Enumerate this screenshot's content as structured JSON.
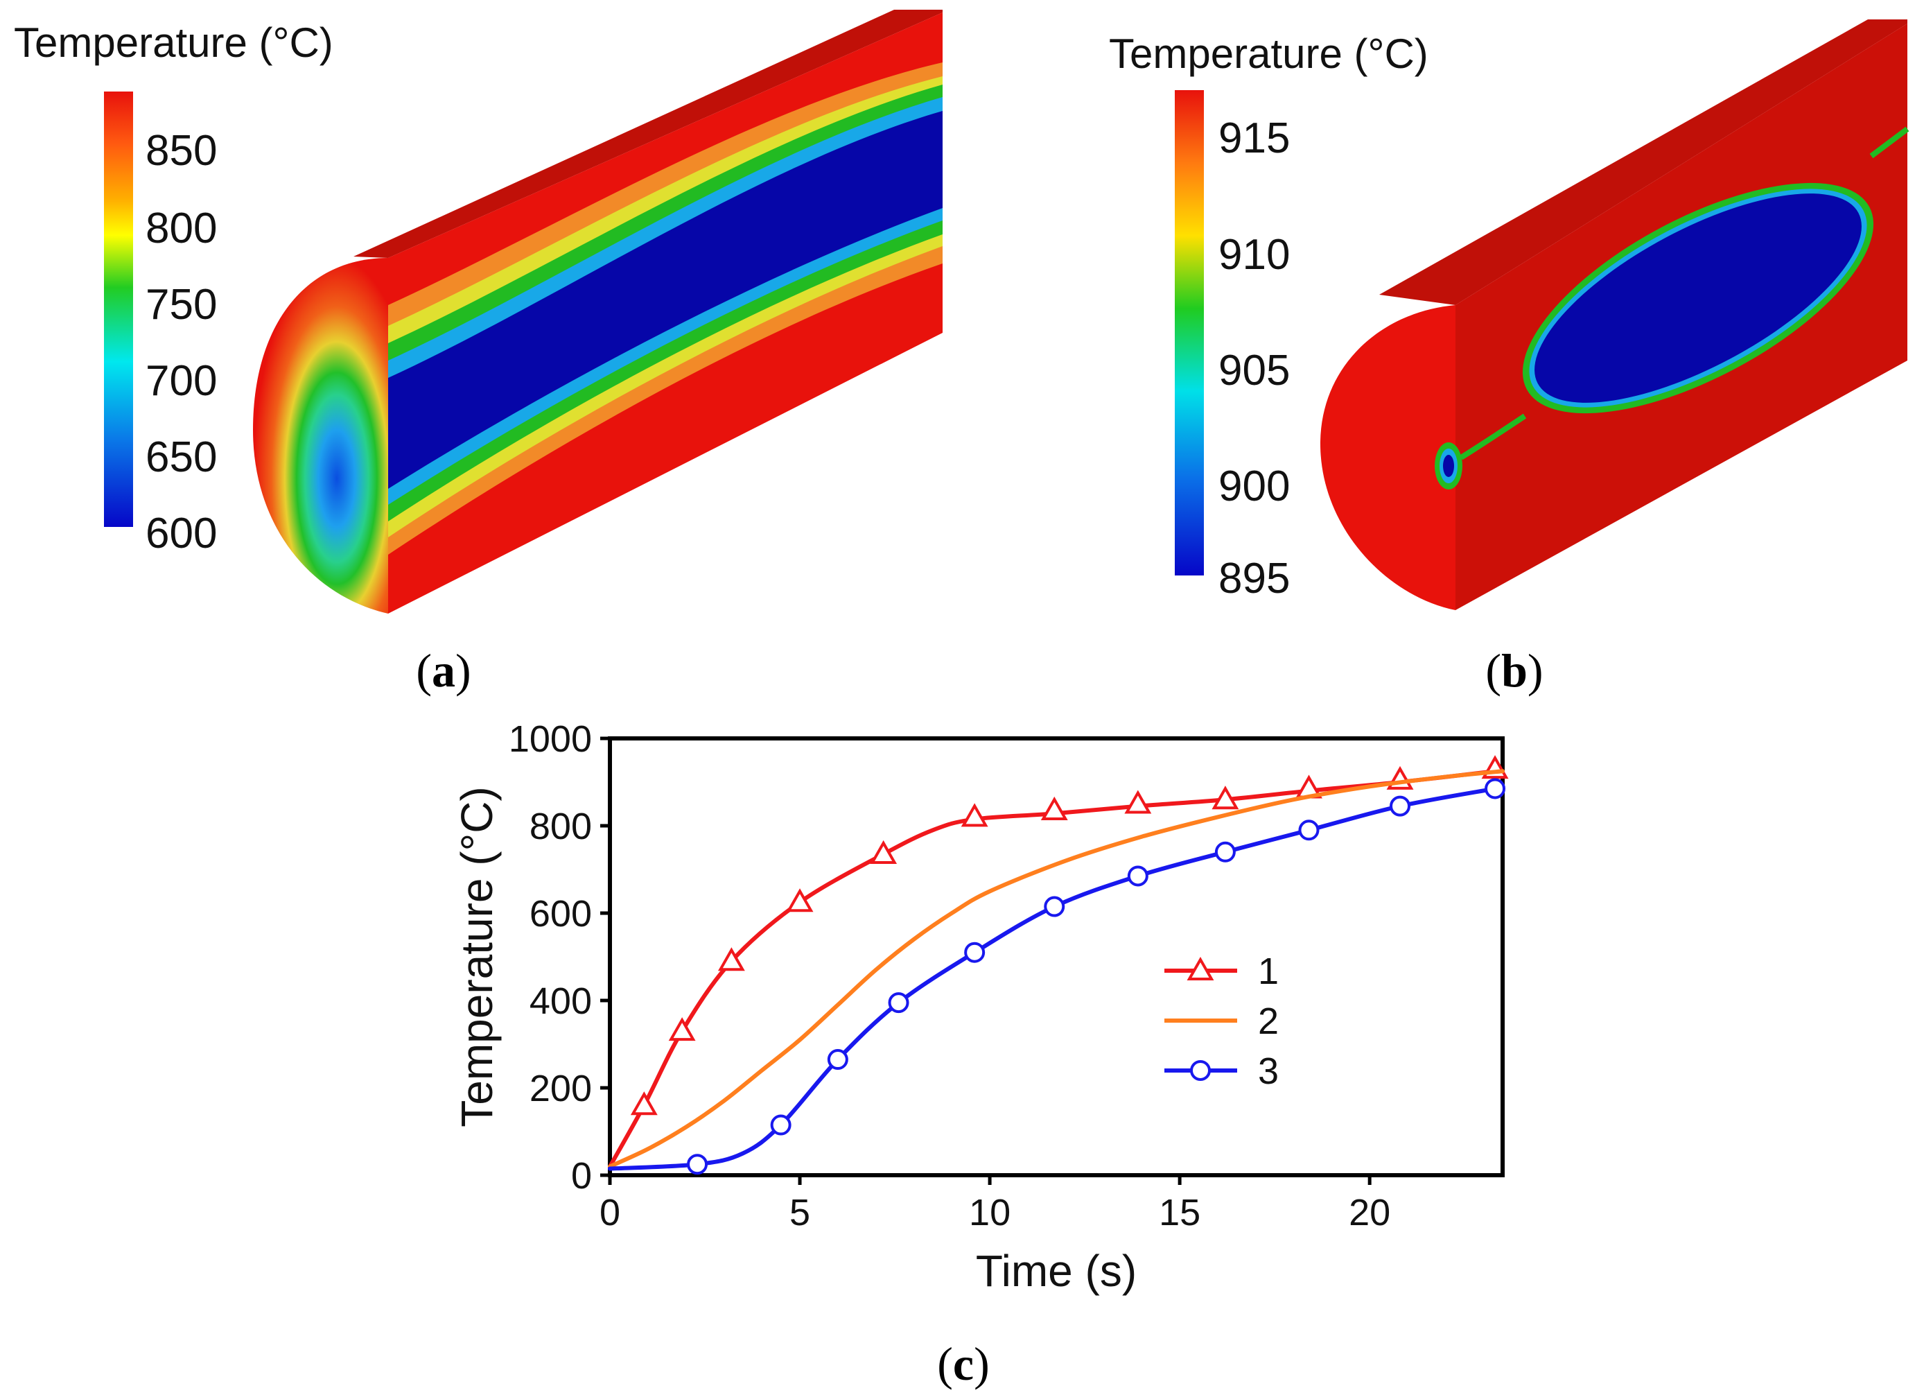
{
  "panels": {
    "a": {
      "label": "a",
      "colorbar": {
        "title": "Temperature (°C)",
        "ticks": [
          "850",
          "800",
          "750",
          "700",
          "650",
          "600"
        ]
      }
    },
    "b": {
      "label": "b",
      "colorbar": {
        "title": "Temperature (°C)",
        "ticks": [
          "915",
          "910",
          "905",
          "900",
          "895"
        ]
      }
    },
    "c": {
      "label": "c"
    }
  },
  "colors": {
    "series1": "#f0181c",
    "series2": "#ff7f1e",
    "series3": "#1818ee",
    "hot": "#e8120c",
    "hot_dark": "#c01008",
    "cold": "#0606a8"
  },
  "chart_data": {
    "type": "line",
    "title": "",
    "xlabel": "Time (s)",
    "ylabel": "Temperature (°C)",
    "xlim": [
      0,
      23.5
    ],
    "ylim": [
      0,
      1000
    ],
    "xticks": [
      "0",
      "5",
      "10",
      "15",
      "20"
    ],
    "xtick_values": [
      0,
      5,
      10,
      15,
      20
    ],
    "yticks": [
      "0",
      "200",
      "400",
      "600",
      "800",
      "1000"
    ],
    "ytick_values": [
      0,
      200,
      400,
      600,
      800,
      1000
    ],
    "legend_position": "center-right",
    "series": [
      {
        "name": "1",
        "marker": "triangle",
        "curve_x": [
          0,
          0.9,
          1.9,
          3.2,
          5.0,
          7.2,
          8.5,
          9.6,
          11.7,
          13.9,
          16.2,
          18.4,
          20.8,
          23.3
        ],
        "curve_y": [
          20,
          160,
          330,
          490,
          625,
          735,
          790,
          815,
          828,
          845,
          860,
          880,
          900,
          925
        ],
        "marker_x": [
          0.9,
          1.9,
          3.2,
          5.0,
          7.2,
          9.6,
          11.7,
          13.9,
          16.2,
          18.4,
          20.8,
          23.3
        ],
        "marker_y": [
          160,
          330,
          490,
          625,
          735,
          820,
          835,
          850,
          860,
          885,
          905,
          930
        ]
      },
      {
        "name": "2",
        "marker": "none",
        "curve_x": [
          0,
          1,
          2,
          3,
          4,
          5,
          6,
          7,
          8,
          9,
          10,
          12,
          14,
          16,
          18,
          20,
          22,
          23.5
        ],
        "curve_y": [
          20,
          60,
          110,
          170,
          240,
          310,
          390,
          470,
          540,
          600,
          650,
          720,
          775,
          820,
          860,
          890,
          912,
          925
        ],
        "marker_x": [],
        "marker_y": []
      },
      {
        "name": "3",
        "marker": "circle",
        "curve_x": [
          0,
          2.3,
          3.5,
          4.5,
          6.0,
          7.6,
          9.6,
          11.7,
          13.9,
          16.2,
          18.4,
          20.8,
          23.3
        ],
        "curve_y": [
          15,
          25,
          50,
          115,
          265,
          395,
          510,
          615,
          685,
          740,
          790,
          845,
          885
        ],
        "marker_x": [
          2.3,
          4.5,
          6.0,
          7.6,
          9.6,
          11.7,
          13.9,
          16.2,
          18.4,
          20.8,
          23.3
        ],
        "marker_y": [
          25,
          115,
          265,
          395,
          510,
          615,
          685,
          740,
          790,
          845,
          885
        ]
      }
    ]
  }
}
